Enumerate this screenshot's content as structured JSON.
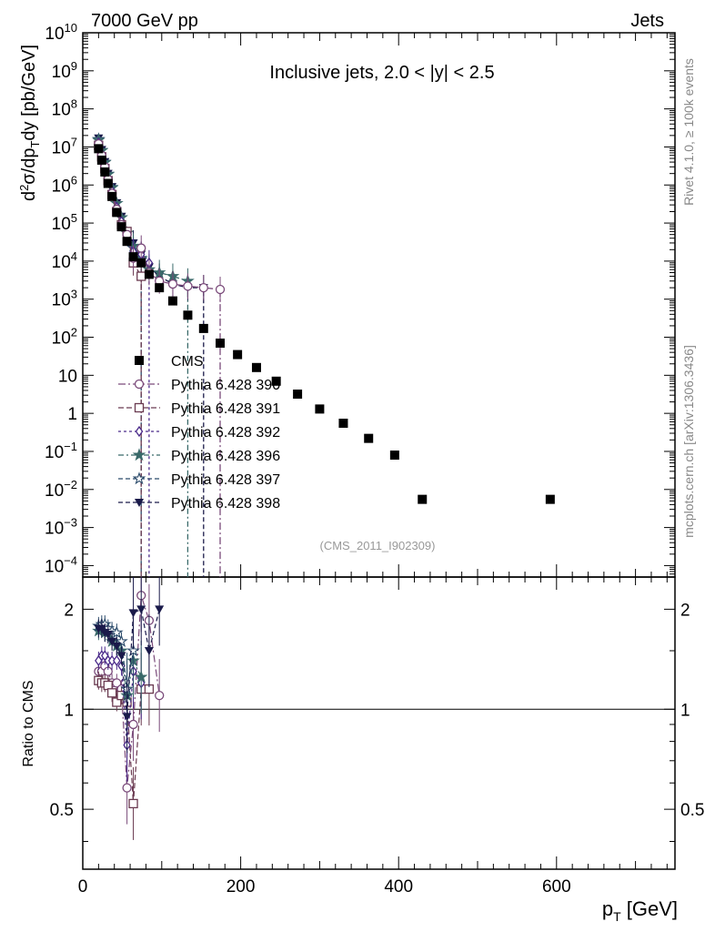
{
  "header": {
    "left": "7000 GeV pp",
    "right": "Jets"
  },
  "side_labels": {
    "rivet": "Rivet 4.1.0, ≥ 100k events",
    "mcplots": "mcplots.cern.ch [arXiv:1306.3436]"
  },
  "watermark": "(CMS_2011_I902309)",
  "colors": {
    "cms": "#000000",
    "p390": "#7a4a7a",
    "p391": "#6a3a50",
    "p392": "#4a2a8a",
    "p396": "#3a6a6a",
    "p397": "#2a4a6a",
    "p398": "#1a1a4a",
    "axis": "#000000",
    "sidetext": "#888888"
  },
  "chart_data": [
    {
      "panel": "main",
      "type": "scatter",
      "title": "Inclusive jets, 2.0 < |y| < 2.5",
      "xlabel": "p_T [GeV]",
      "ylabel": "d²σ/dp_T dy [pb/GeV]",
      "yscale": "log",
      "xlim": [
        0,
        750
      ],
      "ylim": [
        5e-05,
        10000000000.0
      ],
      "yticks": [
        {
          "v": 10000000000.0,
          "b": "10",
          "e": "10"
        },
        {
          "v": 1000000000.0,
          "b": "10",
          "e": "9"
        },
        {
          "v": 100000000.0,
          "b": "10",
          "e": "8"
        },
        {
          "v": 10000000.0,
          "b": "10",
          "e": "7"
        },
        {
          "v": 1000000.0,
          "b": "10",
          "e": "6"
        },
        {
          "v": 100000.0,
          "b": "10",
          "e": "5"
        },
        {
          "v": 10000.0,
          "b": "10",
          "e": "4"
        },
        {
          "v": 1000.0,
          "b": "10",
          "e": "3"
        },
        {
          "v": 100.0,
          "b": "10",
          "e": "2"
        },
        {
          "v": 10,
          "b": "10",
          "e": ""
        },
        {
          "v": 1,
          "b": "1",
          "e": ""
        },
        {
          "v": 0.1,
          "b": "10",
          "e": "−1"
        },
        {
          "v": 0.01,
          "b": "10",
          "e": "−2"
        },
        {
          "v": 0.001,
          "b": "10",
          "e": "−3"
        },
        {
          "v": 0.0001,
          "b": "10",
          "e": "−4"
        }
      ],
      "legend": [
        "CMS",
        "Pythia 6.428 390",
        "Pythia 6.428 391",
        "Pythia 6.428 392",
        "Pythia 6.428 396",
        "Pythia 6.428 397",
        "Pythia 6.428 398"
      ],
      "series": [
        {
          "name": "CMS",
          "marker": "square",
          "x": [
            20,
            24,
            28,
            32,
            37,
            43,
            49,
            56,
            64,
            74,
            84,
            97,
            114,
            133,
            153,
            174,
            196,
            220,
            245,
            272,
            300,
            330,
            362,
            395,
            430,
            592
          ],
          "y": [
            9000000,
            4500000,
            2200000,
            1100000,
            500000,
            190000,
            80000,
            33000,
            13000,
            9000,
            4500,
            2000,
            900,
            380,
            170,
            70,
            35,
            16,
            7,
            3.2,
            1.3,
            0.55,
            0.22,
            0.08,
            0.0055,
            0.0055
          ]
        },
        {
          "name": "Pythia 6.428 390",
          "marker": "circle-open",
          "x": [
            20,
            24,
            28,
            32,
            37,
            43,
            49,
            56,
            64,
            74,
            84,
            97,
            114,
            133,
            153,
            174
          ],
          "y": [
            12000000,
            6000000,
            3000000,
            1400000,
            600000,
            230000,
            90000,
            50000,
            12000,
            22000,
            5000,
            3000,
            2500,
            2200,
            2000,
            1800
          ]
        },
        {
          "name": "Pythia 6.428 391",
          "marker": "square-open",
          "x": [
            20,
            24,
            28,
            32,
            37,
            43,
            49,
            56,
            64,
            74
          ],
          "y": [
            11000000,
            5500000,
            2700000,
            1300000,
            560000,
            200000,
            90000,
            60000,
            9000,
            4000
          ]
        },
        {
          "name": "Pythia 6.428 392",
          "marker": "diamond-open",
          "x": [
            20,
            24,
            28,
            32,
            37,
            43,
            49,
            56,
            64,
            74,
            84
          ],
          "y": [
            13000000,
            6500000,
            3200000,
            1500000,
            700000,
            260000,
            110000,
            45000,
            18000,
            15000,
            9000
          ]
        },
        {
          "name": "Pythia 6.428 396",
          "marker": "star-filled",
          "x": [
            20,
            24,
            28,
            32,
            37,
            43,
            49,
            56,
            64,
            74,
            84,
            97,
            114,
            133
          ],
          "y": [
            15000000,
            8000000,
            3900000,
            1900000,
            850000,
            330000,
            140000,
            55000,
            25000,
            12000,
            6000,
            5000,
            4000,
            3000
          ]
        },
        {
          "name": "Pythia 6.428 397",
          "marker": "star-open",
          "x": [
            20,
            24,
            28,
            32,
            37,
            43,
            49,
            56,
            64,
            74
          ],
          "y": [
            16000000,
            8200000,
            4000000,
            1950000,
            870000,
            330000,
            140000,
            55000,
            22000,
            11000
          ]
        },
        {
          "name": "Pythia 6.428 398",
          "marker": "triangle-down",
          "x": [
            20,
            24,
            28,
            32,
            37,
            43,
            49,
            56,
            64,
            74,
            84,
            97,
            114,
            133,
            153
          ],
          "y": [
            17000000,
            8500000,
            4100000,
            2000000,
            900000,
            340000,
            150000,
            60000,
            30000,
            15000,
            7000,
            4000,
            2500,
            2000,
            2000
          ]
        }
      ]
    },
    {
      "panel": "ratio",
      "type": "scatter",
      "ylabel": "Ratio to CMS",
      "yscale": "log",
      "xlim": [
        0,
        750
      ],
      "ylim": [
        0.33,
        2.5
      ],
      "yticks": [
        {
          "v": 2,
          "label": "2"
        },
        {
          "v": 1,
          "label": "1"
        },
        {
          "v": 0.5,
          "label": "0.5"
        }
      ],
      "xticks": [
        0,
        200,
        400,
        600
      ],
      "series": [
        {
          "name": "Pythia 6.428 390",
          "x": [
            20,
            24,
            28,
            32,
            37,
            43,
            49,
            56,
            64,
            74,
            84,
            97
          ],
          "y": [
            1.3,
            1.3,
            1.35,
            1.3,
            1.2,
            1.2,
            1.15,
            0.58,
            0.9,
            2.2,
            1.85,
            1.1
          ]
        },
        {
          "name": "Pythia 6.428 391",
          "x": [
            20,
            24,
            28,
            32,
            37,
            43,
            49,
            56,
            64,
            74,
            84
          ],
          "y": [
            1.22,
            1.2,
            1.2,
            1.18,
            1.12,
            1.05,
            1.1,
            1.05,
            0.52,
            1.15,
            1.15
          ]
        },
        {
          "name": "Pythia 6.428 392",
          "x": [
            20,
            24,
            28,
            32,
            37,
            43,
            49,
            56,
            64,
            74
          ],
          "y": [
            1.4,
            1.45,
            1.45,
            1.4,
            1.4,
            1.4,
            1.35,
            0.78,
            1.3,
            1.2
          ]
        },
        {
          "name": "Pythia 6.428 396",
          "x": [
            20,
            24,
            28,
            32,
            37,
            43,
            49,
            56,
            64,
            74
          ],
          "y": [
            1.72,
            1.75,
            1.7,
            1.7,
            1.6,
            1.55,
            1.5,
            1.1,
            1.4,
            1.25
          ]
        },
        {
          "name": "Pythia 6.428 397",
          "x": [
            20,
            24,
            28,
            32,
            37,
            43,
            49,
            56,
            64
          ],
          "y": [
            1.78,
            1.8,
            1.8,
            1.75,
            1.72,
            1.7,
            1.6,
            1.15,
            1.5
          ]
        },
        {
          "name": "Pythia 6.428 398",
          "x": [
            20,
            24,
            28,
            32,
            37,
            43,
            49,
            56,
            64,
            74,
            84,
            97
          ],
          "y": [
            1.75,
            1.75,
            1.7,
            1.68,
            1.6,
            1.55,
            1.45,
            0.95,
            1.95,
            2.0,
            1.5,
            2.0
          ]
        }
      ]
    }
  ]
}
